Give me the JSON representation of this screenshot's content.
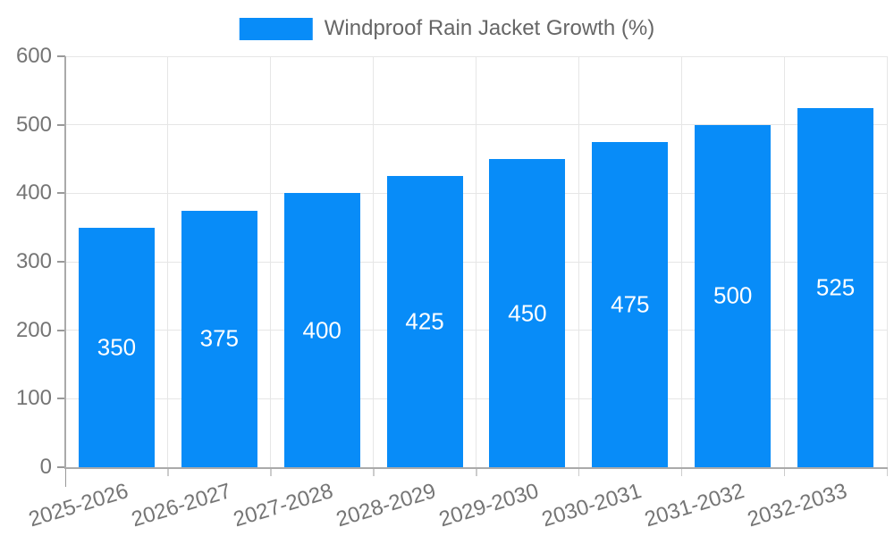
{
  "legend": {
    "label": "Windproof Rain Jacket Growth (%)"
  },
  "colors": {
    "bar": "#088CF8",
    "grid": "#e6e6e6",
    "axis": "#aaaaaa",
    "tick_mark": "#999999",
    "boundary_tick": "#cccccc",
    "tick_text": "#757575",
    "legend_text": "#666666",
    "bar_label_text": "#ffffff"
  },
  "chart_data": {
    "type": "bar",
    "title": "Windproof Rain Jacket Growth (%)",
    "categories": [
      "2025-2026",
      "2026-2027",
      "2027-2028",
      "2028-2029",
      "2029-2030",
      "2030-2031",
      "2031-2032",
      "2032-2033"
    ],
    "values": [
      350,
      375,
      400,
      425,
      450,
      475,
      500,
      525
    ],
    "series": [
      {
        "name": "Windproof Rain Jacket Growth (%)",
        "values": [
          350,
          375,
          400,
          425,
          450,
          475,
          500,
          525
        ]
      }
    ],
    "xlabel": "",
    "ylabel": "",
    "ylim": [
      0,
      600
    ],
    "yticks": [
      0,
      100,
      200,
      300,
      400,
      500,
      600
    ],
    "grid": true,
    "legend_position": "top",
    "bar_value_labels": true
  }
}
